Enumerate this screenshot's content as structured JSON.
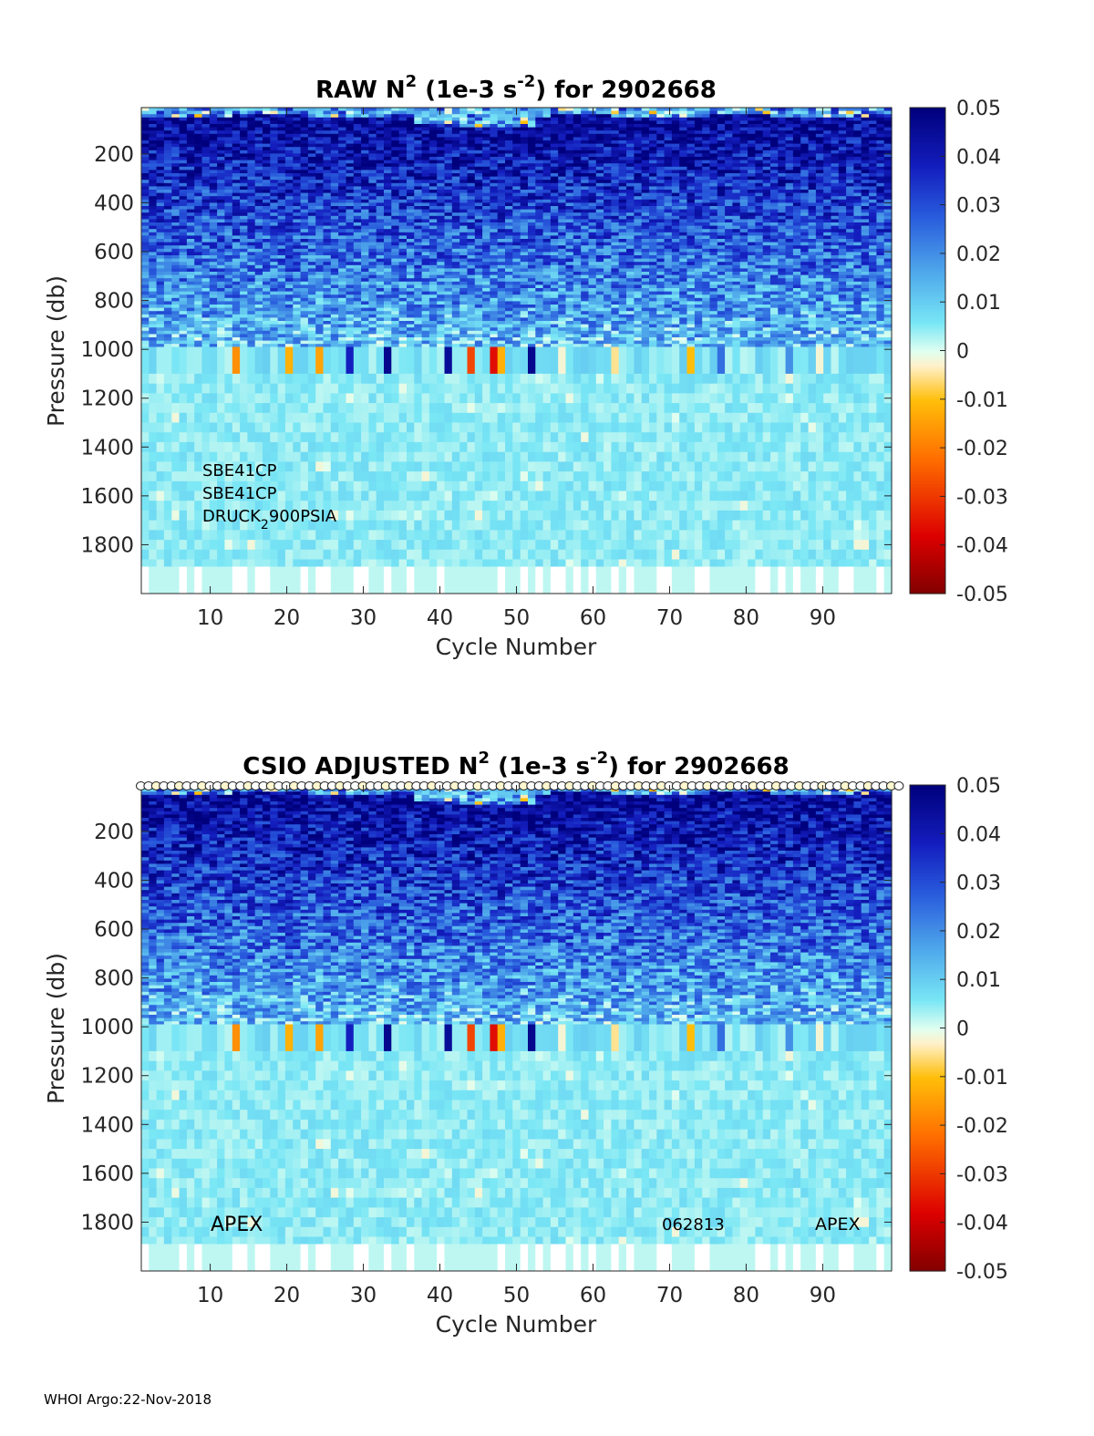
{
  "chart_data": [
    {
      "type": "heatmap",
      "title": "RAW N² (1e-3 s⁻²) for 2902668",
      "title_parts": {
        "a": "RAW N",
        "b": "2",
        "c": " (1e-3 s",
        "d": "-2",
        "e": ") for 2902668"
      },
      "xlabel": "Cycle Number",
      "ylabel": "Pressure (db)",
      "xlim": [
        1,
        99
      ],
      "ylim": [
        2000,
        10
      ],
      "xticks": [
        10,
        20,
        30,
        40,
        50,
        60,
        70,
        80,
        90
      ],
      "yticks": [
        200,
        400,
        600,
        800,
        1000,
        1200,
        1400,
        1600,
        1800
      ],
      "colorbar": {
        "min": -0.05,
        "max": 0.05,
        "ticks": [
          "0.05",
          "0.04",
          "0.03",
          "0.02",
          "0.01",
          "0",
          "-0.01",
          "-0.02",
          "-0.03",
          "-0.04",
          "-0.05"
        ]
      },
      "annotations": [
        "SBE41CP",
        "SBE41CP",
        "DRUCK",
        "2",
        "900PSIA"
      ],
      "flagged_top_cycles": []
    },
    {
      "type": "heatmap",
      "title": "CSIO ADJUSTED N² (1e-3 s⁻²) for 2902668",
      "title_parts": {
        "a": "CSIO  ADJUSTED N",
        "b": "2",
        "c": " (1e-3 s",
        "d": "-2",
        "e": ") for 2902668"
      },
      "xlabel": "Cycle Number",
      "ylabel": "Pressure (db)",
      "xlim": [
        1,
        99
      ],
      "ylim": [
        2000,
        10
      ],
      "xticks": [
        10,
        20,
        30,
        40,
        50,
        60,
        70,
        80,
        90
      ],
      "yticks": [
        200,
        400,
        600,
        800,
        1000,
        1200,
        1400,
        1600,
        1800
      ],
      "colorbar": {
        "min": -0.05,
        "max": 0.05,
        "ticks": [
          "0.05",
          "0.04",
          "0.03",
          "0.02",
          "0.01",
          "0",
          "-0.01",
          "-0.02",
          "-0.03",
          "-0.04",
          "-0.05"
        ]
      },
      "annotations": [
        "APEX",
        "062813",
        "APEX"
      ],
      "flagged_top_cycles": "all"
    }
  ],
  "footer": "WHOI Argo:22-Nov-2018"
}
